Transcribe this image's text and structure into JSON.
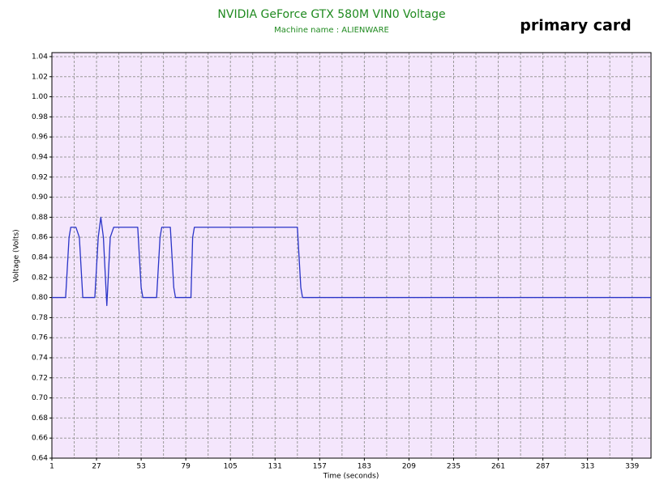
{
  "chart_data": {
    "type": "line",
    "title": "NVIDIA GeForce GTX 580M VIN0 Voltage",
    "subtitle": "Machine name : ALIENWARE",
    "annotation": "primary card",
    "x_label": "Time (seconds)",
    "y_label": "Voltage (Volts)",
    "x": [
      1,
      9,
      11,
      12,
      15,
      17,
      19,
      26,
      28,
      29.5,
      31,
      33,
      35,
      37,
      51,
      53,
      54,
      62,
      64,
      65,
      70,
      72,
      73,
      82,
      83,
      84,
      144,
      146,
      147,
      350
    ],
    "series": [
      {
        "name": "VIN0 Voltage",
        "color": "#2a34c8",
        "values": [
          0.8,
          0.8,
          0.86,
          0.87,
          0.87,
          0.86,
          0.8,
          0.8,
          0.86,
          0.88,
          0.86,
          0.792,
          0.86,
          0.87,
          0.87,
          0.81,
          0.8,
          0.8,
          0.86,
          0.87,
          0.87,
          0.81,
          0.8,
          0.8,
          0.86,
          0.87,
          0.87,
          0.81,
          0.8,
          0.8
        ]
      }
    ],
    "xlim": [
      1,
      350
    ],
    "xticks": [
      1,
      27,
      53,
      79,
      105,
      131,
      157,
      183,
      209,
      235,
      261,
      287,
      313,
      339
    ],
    "xminorticks": [
      14,
      40,
      66,
      92,
      118,
      144,
      170,
      196,
      222,
      248,
      274,
      300,
      326
    ],
    "ylim": [
      0.64,
      1.044
    ],
    "yticks": [
      0.64,
      0.66,
      0.68,
      {
        "value": 0.7,
        "label": "0.70"
      },
      0.72,
      0.74,
      0.76,
      0.78,
      {
        "value": 0.8,
        "label": "0.80"
      },
      0.82,
      0.84,
      0.86,
      0.88,
      {
        "value": 0.9,
        "label": "0.90"
      },
      0.92,
      0.94,
      0.96,
      0.98,
      {
        "value": 1,
        "label": "1.00"
      },
      1.02,
      1.04
    ],
    "grid": true,
    "plot_background": "#f4e6fc"
  }
}
